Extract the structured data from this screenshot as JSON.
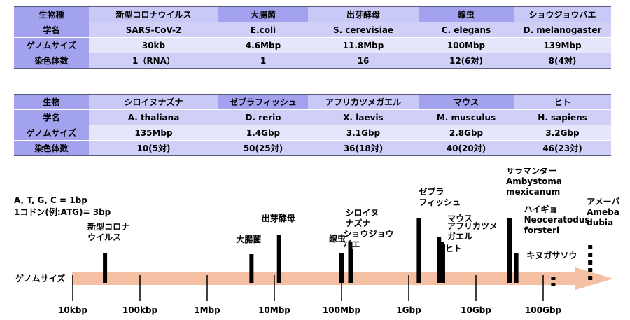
{
  "table1": {
    "rows": [
      [
        "生物種",
        "新型コロナウイルス",
        "大腸菌",
        "出芽酵母",
        "線虫",
        "ショウジョウバエ"
      ],
      [
        "学名",
        "SARS-CoV-2",
        "E.coli",
        "S. cerevisiae",
        "C. elegans",
        "D. melanogaster"
      ],
      [
        "ゲノムサイズ",
        "30kb",
        "4.6Mbp",
        "11.8Mbp",
        "100Mbp",
        "139Mbp"
      ],
      [
        "染色体数",
        "1（RNA）",
        "1",
        "16",
        "12(6対)",
        "8(4対)"
      ]
    ]
  },
  "table2": {
    "rows": [
      [
        "生物",
        "シロイヌナズナ",
        "ゼブラフィッシュ",
        "アフリカツメガエル",
        "マウス",
        "ヒト"
      ],
      [
        "学名",
        "A. thaliana",
        "D. rerio",
        "X. laevis",
        "M. musculus",
        "H. sapiens"
      ],
      [
        "ゲノムサイズ",
        "135Mbp",
        "1.4Gbp",
        "3.1Gbp",
        "2.8Gbp",
        "3.2Gbp"
      ],
      [
        "染色体数",
        "10(5対)",
        "50(25対)",
        "36(18対)",
        "40(20対)",
        "46(23対)"
      ]
    ]
  },
  "note": {
    "line1": "A, T, G, C = 1bp",
    "line2": "1コドン(例:ATG)= 3bp"
  },
  "axis": {
    "label": "ゲノムサイズ",
    "arrow_color": "#f4b89a",
    "ticks": [
      "10kbp",
      "100kbp",
      "1Mbp",
      "10Mbp",
      "100Mbp",
      "1Gbp",
      "10Gbp",
      "100Gbp"
    ]
  },
  "organisms": [
    {
      "label": "新型コロナ\nウイルス",
      "log10_bp": 4.48
    },
    {
      "label": "大腸菌",
      "log10_bp": 6.66
    },
    {
      "label": "出芽酵母",
      "log10_bp": 7.07
    },
    {
      "label": "線虫",
      "log10_bp": 8.0
    },
    {
      "label": "シロイヌ\nナズナ",
      "log10_bp": 8.13
    },
    {
      "label": "ショウジョウ\nバエ",
      "log10_bp": 8.14
    },
    {
      "label": "ゼブラ\nフィッシュ",
      "log10_bp": 9.15
    },
    {
      "label": "マウス",
      "log10_bp": 9.45
    },
    {
      "label": "アフリカツメ\nガエル",
      "log10_bp": 9.49
    },
    {
      "label": "ヒト",
      "log10_bp": 9.51
    },
    {
      "label": "サラマンダー\nAmbystoma\nmexicanum",
      "log10_bp": 10.5
    },
    {
      "label": "ハイギョ\nNeoceratodus\nforsteri",
      "log10_bp": 10.6
    },
    {
      "label": "キヌガサソウ",
      "log10_bp": 11.15
    },
    {
      "label": "アメーバ\nAmeba\ndubia",
      "log10_bp": 11.7
    }
  ]
}
